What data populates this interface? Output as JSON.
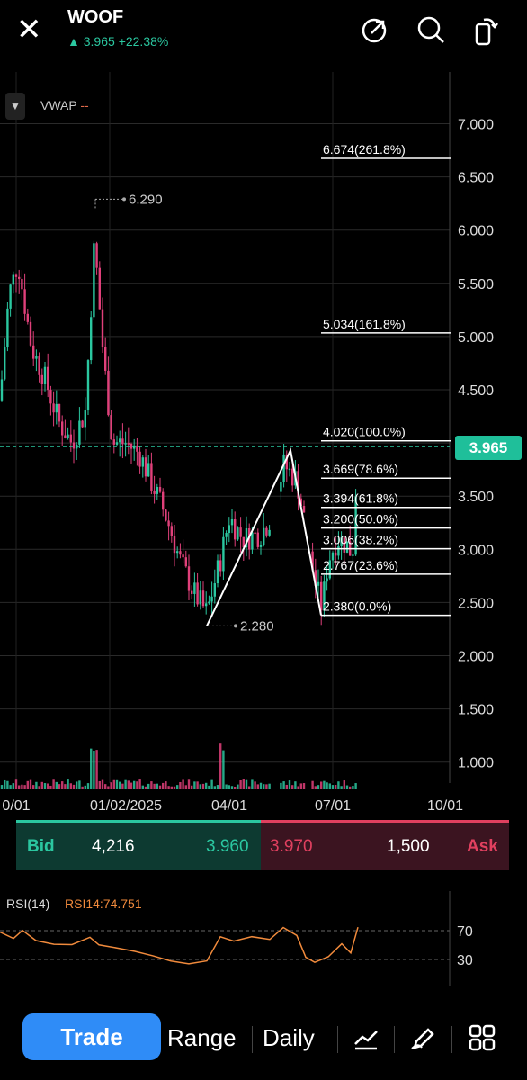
{
  "header": {
    "ticker": "WOOF",
    "price": "3.965",
    "change": "+22.38%",
    "icons": [
      "close-icon",
      "share-icon",
      "search-icon",
      "rotate-icon"
    ]
  },
  "chart": {
    "indicator": "VWAP",
    "indicator_value": "--",
    "price_axis": [
      "7.000",
      "6.500",
      "6.000",
      "5.500",
      "5.000",
      "4.500",
      "4.000",
      "3.500",
      "3.000",
      "2.500",
      "2.000",
      "1.500",
      "1.000"
    ],
    "time_axis": [
      "0/01",
      "01/02/2025",
      "04/01",
      "07/01",
      "10/01"
    ],
    "current_price": "3.965",
    "high_label": "6.290",
    "low_label": "2.280",
    "fib_levels": [
      {
        "label": "6.674(261.8%)",
        "price": 6.674
      },
      {
        "label": "5.034(161.8%)",
        "price": 5.034
      },
      {
        "label": "4.020(100.0%)",
        "price": 4.02
      },
      {
        "label": "3.669(78.6%)",
        "price": 3.669
      },
      {
        "label": "3.394(61.8%)",
        "price": 3.394
      },
      {
        "label": "3.200(50.0%)",
        "price": 3.2
      },
      {
        "label": "3.006(38.2%)",
        "price": 3.006
      },
      {
        "label": "2.767(23.6%)",
        "price": 2.767
      },
      {
        "label": "2.380(0.0%)",
        "price": 2.38
      }
    ],
    "colors": {
      "up": "#2bc7a0",
      "down": "#e0407a",
      "fib": "#ffffff",
      "grid": "#2a2a2a"
    }
  },
  "bid_ask": {
    "bid_label": "Bid",
    "bid_size": "4,216",
    "bid_price": "3.960",
    "ask_price": "3.970",
    "ask_size": "1,500",
    "ask_label": "Ask"
  },
  "rsi": {
    "label": "RSI(14)",
    "value": "RSI14:74.751",
    "levels": [
      "70",
      "30"
    ]
  },
  "toolbar": {
    "trade": "Trade",
    "range": "Range",
    "daily": "Daily",
    "icons": [
      "draw-trend-icon",
      "pen-icon",
      "grid-icon"
    ]
  }
}
